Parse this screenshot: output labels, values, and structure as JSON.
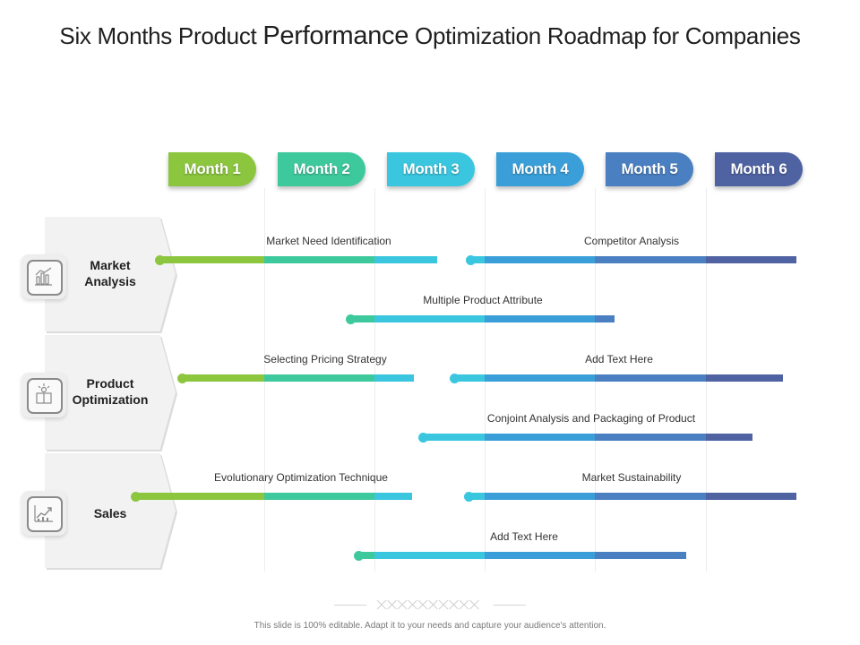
{
  "title": {
    "part1": "Six Months Product ",
    "part2": "Performance",
    "part3": " Optimization Roadmap for Companies"
  },
  "months": [
    {
      "label": "Month 1",
      "color": "#8cc63f"
    },
    {
      "label": "Month 2",
      "color": "#3ec99d"
    },
    {
      "label": "Month 3",
      "color": "#3ac6df"
    },
    {
      "label": "Month 4",
      "color": "#3a9fd8"
    },
    {
      "label": "Month 5",
      "color": "#4a7fc1"
    },
    {
      "label": "Month 6",
      "color": "#4f63a3"
    }
  ],
  "categories": [
    {
      "label_line1": "Market",
      "label_line2": "Analysis",
      "icon": "bar-chart-icon"
    },
    {
      "label_line1": "Product",
      "label_line2": "Optimization",
      "icon": "gift-box-icon"
    },
    {
      "label_line1": "Sales",
      "label_line2": "",
      "icon": "trend-chart-icon"
    }
  ],
  "tasks": [
    {
      "label": "Market Need Identification",
      "start_month": 0.05,
      "end_month": 2.57
    },
    {
      "label": "Competitor Analysis",
      "start_month": 2.87,
      "end_month": 5.82
    },
    {
      "label": "Multiple Product Attribute",
      "start_month": 1.78,
      "end_month": 4.18
    },
    {
      "label": "Selecting Pricing Strategy",
      "start_month": 0.25,
      "end_month": 2.36
    },
    {
      "label": "Add Text Here",
      "start_month": 2.72,
      "end_month": 5.7
    },
    {
      "label": "Conjoint Analysis and Packaging of Product",
      "start_month": 2.44,
      "end_month": 5.42
    },
    {
      "label": "Evolutionary Optimization Technique",
      "start_month": -0.17,
      "end_month": 2.34
    },
    {
      "label": "Market Sustainability",
      "start_month": 2.85,
      "end_month": 5.82
    },
    {
      "label": "Add Text Here",
      "start_month": 1.85,
      "end_month": 4.82
    }
  ],
  "divider_pattern": "XXXXXXXXXX",
  "footer": "This slide is 100% editable. Adapt it to your needs and capture your audience's attention."
}
